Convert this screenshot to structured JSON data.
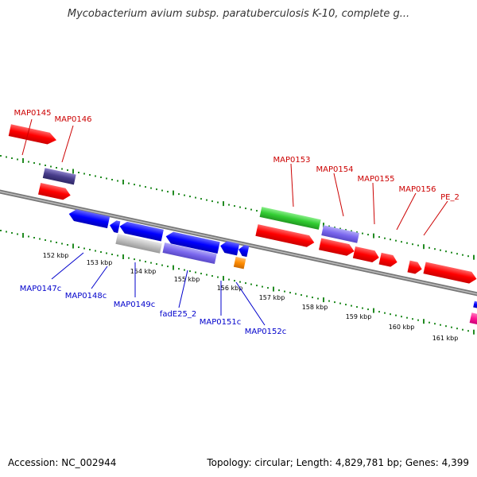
{
  "title": "Mycobacterium avium subsp. paratuberculosis K-10, complete g...",
  "footer": {
    "accession": "Accession: NC_002944",
    "topology": "Topology: circular; Length: 4,829,781 bp; Genes: 4,399"
  },
  "ticks": [
    {
      "label": "152 kbp"
    },
    {
      "label": "153 kbp"
    },
    {
      "label": "154 kbp"
    },
    {
      "label": "155 kbp"
    },
    {
      "label": "156 kbp"
    },
    {
      "label": "157 kbp"
    },
    {
      "label": "158 kbp"
    },
    {
      "label": "159 kbp"
    },
    {
      "label": "160 kbp"
    },
    {
      "label": "161 kbp"
    }
  ],
  "genes_forward": [
    {
      "label": "MAP0145",
      "color": "#cc0000"
    },
    {
      "label": "MAP0146",
      "color": "#cc0000"
    },
    {
      "label": "MAP0153",
      "color": "#cc0000"
    },
    {
      "label": "MAP0154",
      "color": "#cc0000"
    },
    {
      "label": "MAP0155",
      "color": "#cc0000"
    },
    {
      "label": "MAP0156",
      "color": "#cc0000"
    },
    {
      "label": "PE_2",
      "color": "#cc0000"
    }
  ],
  "genes_reverse": [
    {
      "label": "MAP0147c",
      "color": "#0000cc"
    },
    {
      "label": "MAP0148c",
      "color": "#0000cc"
    },
    {
      "label": "MAP0149c",
      "color": "#0000cc"
    },
    {
      "label": "fadE25_2",
      "color": "#0000cc"
    },
    {
      "label": "MAP0151c",
      "color": "#0000cc"
    },
    {
      "label": "MAP0152c",
      "color": "#0000cc"
    }
  ],
  "colors": {
    "cds_forward": "#ff0000",
    "cds_reverse": "#0000ff",
    "gene_purple": "#7b68ee",
    "gene_dark_purple": "#483d8b",
    "gene_green": "#32cd32",
    "gene_gray": "#c0c0c0",
    "gene_orange": "#ff8c00",
    "gene_pink": "#ff1493",
    "backbone": "#777777",
    "gc_dots": "#228b22"
  }
}
